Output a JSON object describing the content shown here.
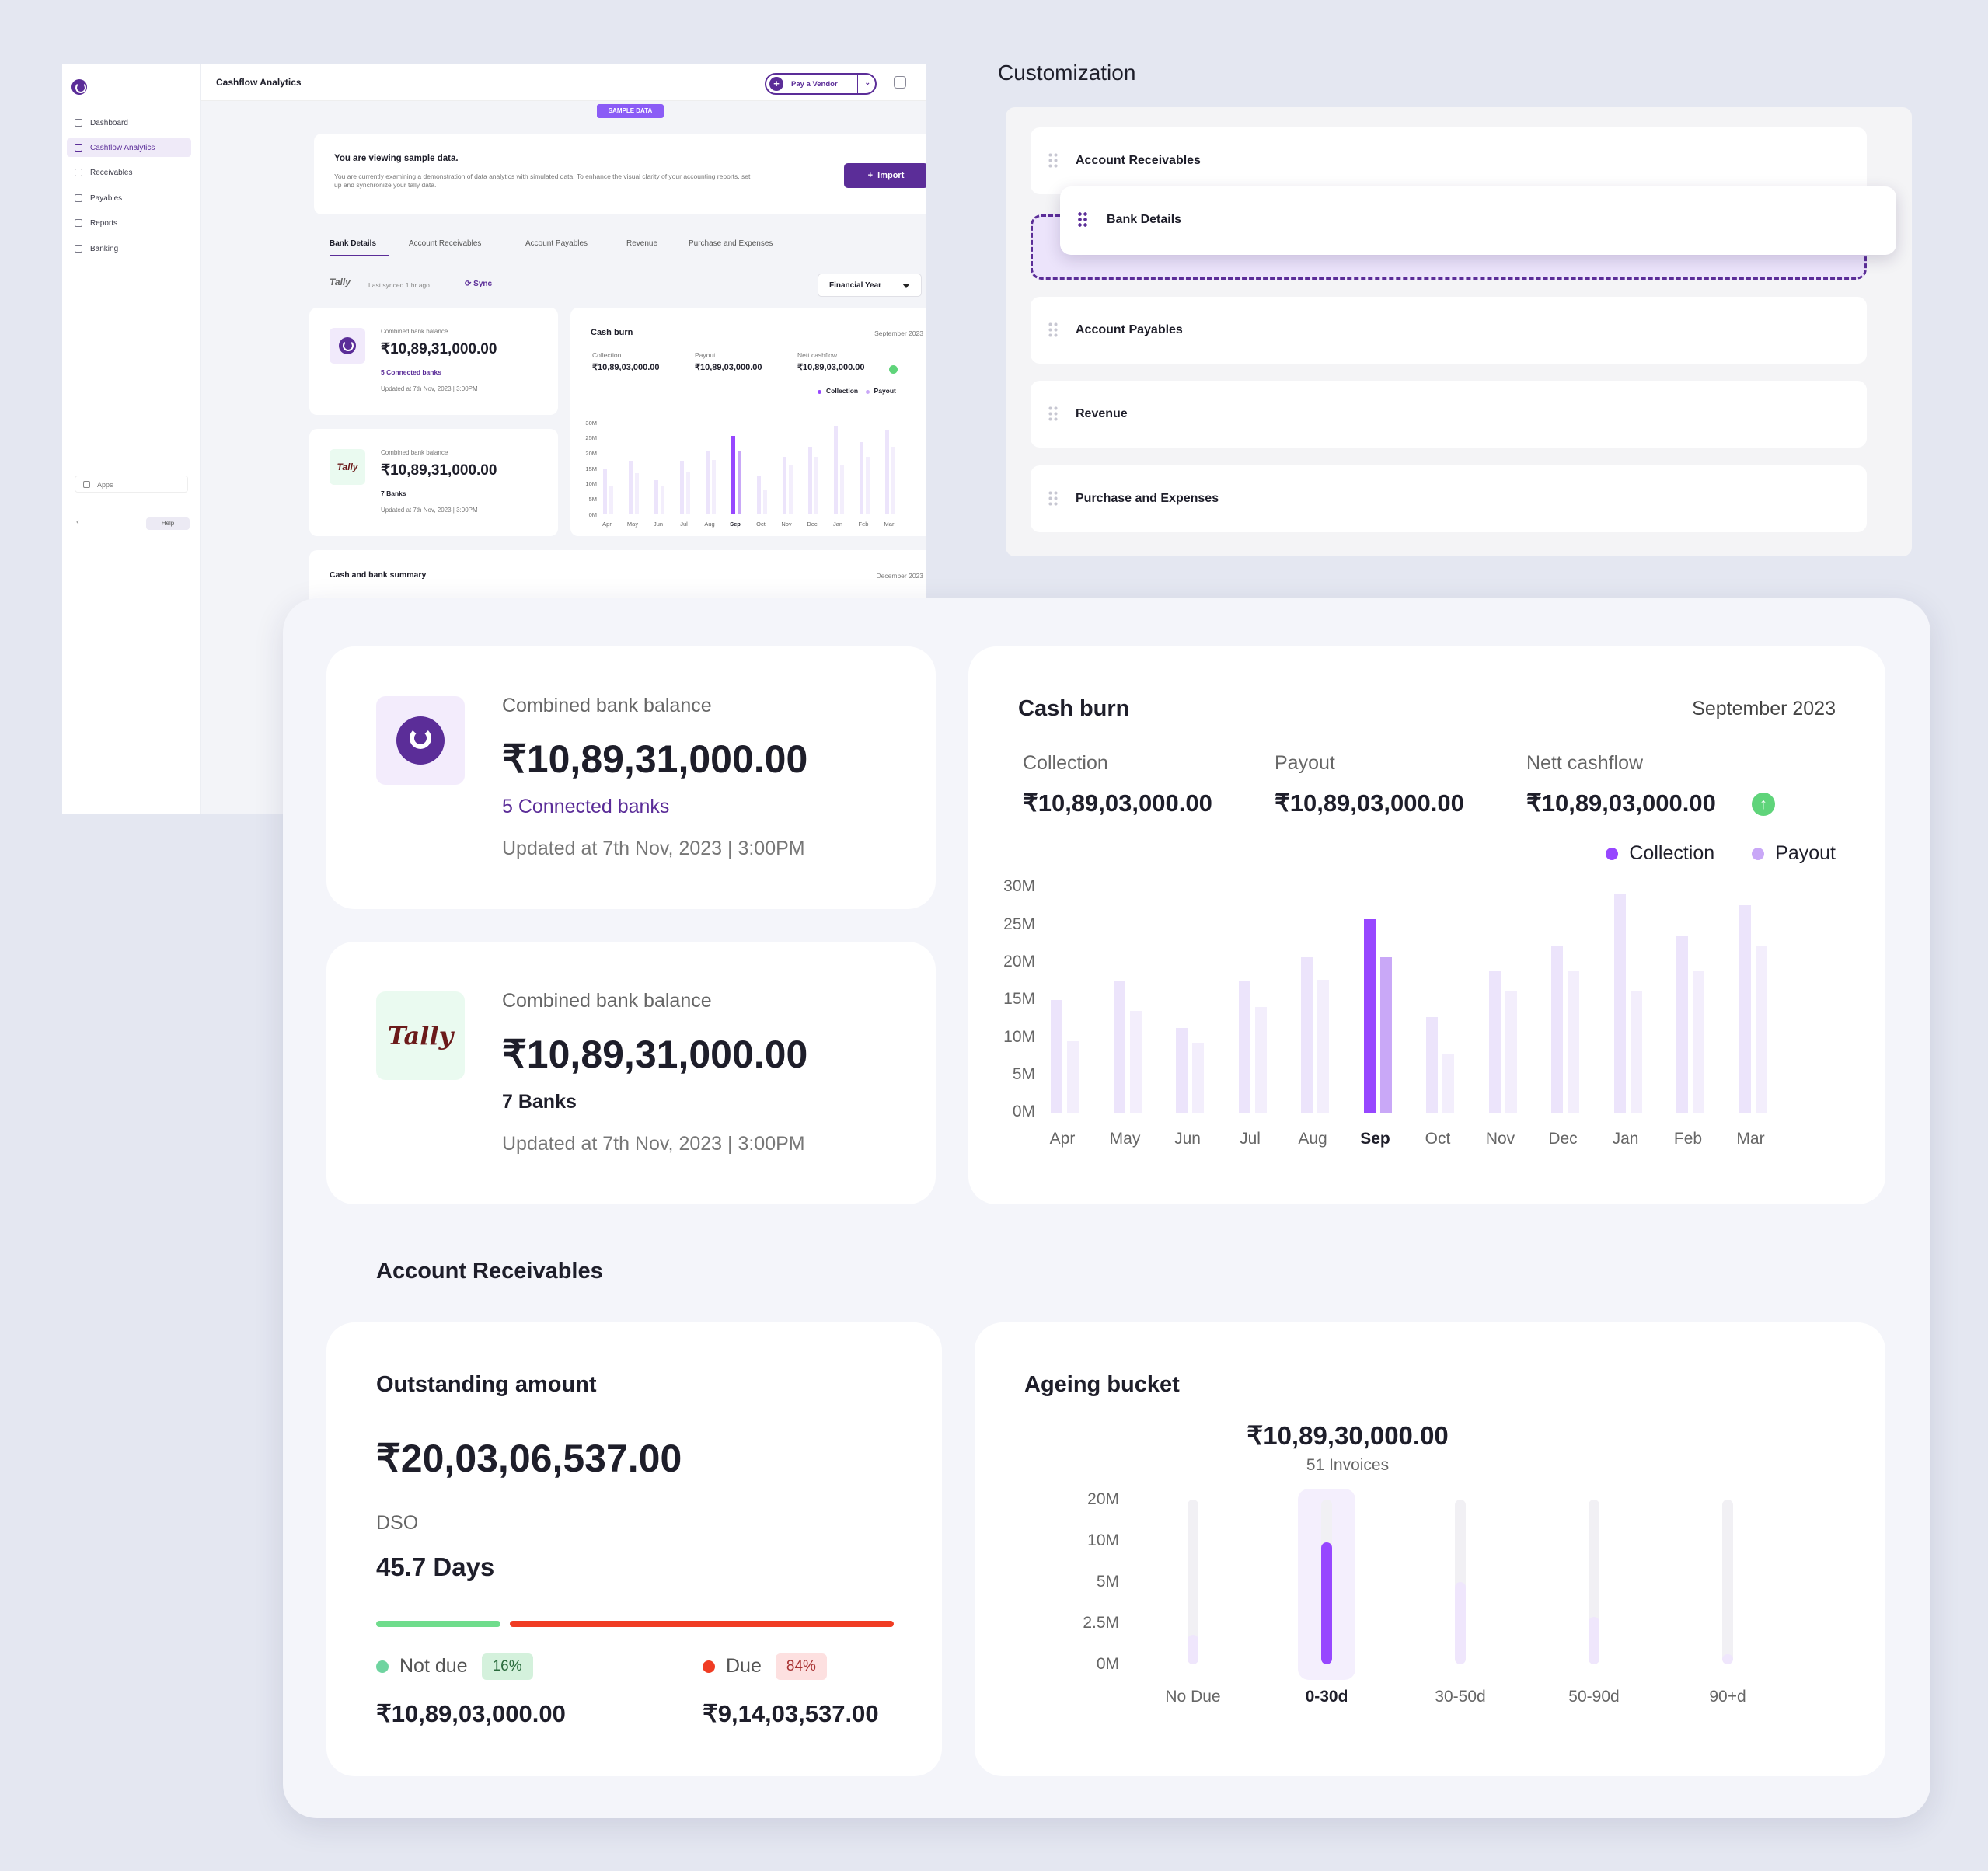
{
  "mini": {
    "app_title": "Cashflow Analytics",
    "nav": [
      "Dashboard",
      "Cashflow Analytics",
      "Receivables",
      "Payables",
      "Reports",
      "Banking"
    ],
    "apps_label": "Apps",
    "help_label": "Help",
    "back_glyph": "‹",
    "pay_vendor": "Pay a Vendor",
    "sample_badge": "SAMPLE DATA",
    "banner_title": "You are viewing sample data.",
    "banner_text": "You are currently examining a demonstration of data analytics with simulated data. To enhance the visual clarity of your accounting reports, set up and synchronize your tally data.",
    "import_label": "Import",
    "tabs": [
      "Bank Details",
      "Account Receivables",
      "Account Payables",
      "Revenue",
      "Purchase and Expenses"
    ],
    "tally_logo": "Tally",
    "last_synced": "Last synced 1 hr ago",
    "sync_label": "Sync",
    "financial_year": "Financial Year",
    "summary_title": "Cash and bank summary",
    "summary_date": "December 2023"
  },
  "customization": {
    "title": "Customization",
    "items": [
      "Account Receivables",
      "Bank Details",
      "Account Payables",
      "Revenue",
      "Purchase and Expenses"
    ]
  },
  "bank_cards": [
    {
      "label": "Combined bank balance",
      "amount": "₹10,89,31,000.00",
      "sub": "5 Connected banks",
      "updated": "Updated at 7th Nov, 2023 | 3:00PM"
    },
    {
      "label": "Combined bank balance",
      "amount": "₹10,89,31,000.00",
      "sub": "7 Banks",
      "updated": "Updated at 7th Nov, 2023 | 3:00PM"
    }
  ],
  "cash_burn": {
    "title": "Cash burn",
    "date": "September 2023",
    "collection_label": "Collection",
    "collection_value": "₹10,89,03,000.00",
    "payout_label": "Payout",
    "payout_value": "₹10,89,03,000.00",
    "nett_label": "Nett cashflow",
    "nett_value": "₹10,89,03,000.00",
    "nett_icon": "arrow-up-icon",
    "colors": {
      "collection": "#9747ff",
      "payout": "#c9a8f7",
      "collection_light": "#ece4fb",
      "payout_light": "#f3eefc"
    }
  },
  "chart_data": {
    "type": "bar",
    "categories": [
      "Apr",
      "May",
      "Jun",
      "Jul",
      "Aug",
      "Sep",
      "Oct",
      "Nov",
      "Dec",
      "Jan",
      "Feb",
      "Mar"
    ],
    "highlight": "Sep",
    "series": [
      {
        "name": "Collection",
        "values": [
          15,
          17.5,
          11.3,
          17.6,
          20.7,
          25.8,
          12.7,
          18.8,
          22.2,
          29.1,
          23.6,
          27.6
        ]
      },
      {
        "name": "Payout",
        "values": [
          9.5,
          13.6,
          9.3,
          14.1,
          17.7,
          20.7,
          7.9,
          16.2,
          18.8,
          16.1,
          18.8,
          22.1
        ]
      }
    ],
    "y_ticks": [
      "0M",
      "5M",
      "10M",
      "15M",
      "20M",
      "25M",
      "30M"
    ],
    "ylim": [
      0,
      30
    ],
    "legend": "top-right"
  },
  "receivables": {
    "section_title": "Account Receivables",
    "outstanding_label": "Outstanding amount",
    "outstanding_value": "₹20,03,06,537.00",
    "dso_label": "DSO",
    "dso_value": "45.7 Days",
    "not_due_label": "Not due",
    "not_due_pct": "16%",
    "not_due_value": "₹10,89,03,000.00",
    "due_label": "Due",
    "due_pct": "84%",
    "due_value": "₹9,14,03,537.00"
  },
  "ageing": {
    "title": "Ageing bucket",
    "amount": "₹10,89,30,000.00",
    "invoices": "51 Invoices",
    "y_ticks": [
      "0M",
      "2.5M",
      "5M",
      "10M",
      "20M"
    ],
    "buckets": [
      "No Due",
      "0-30d",
      "30-50d",
      "50-90d",
      "90+d"
    ],
    "selected": "0-30d",
    "fill_fraction": [
      0.18,
      0.74,
      0.5,
      0.29,
      0.06
    ]
  }
}
